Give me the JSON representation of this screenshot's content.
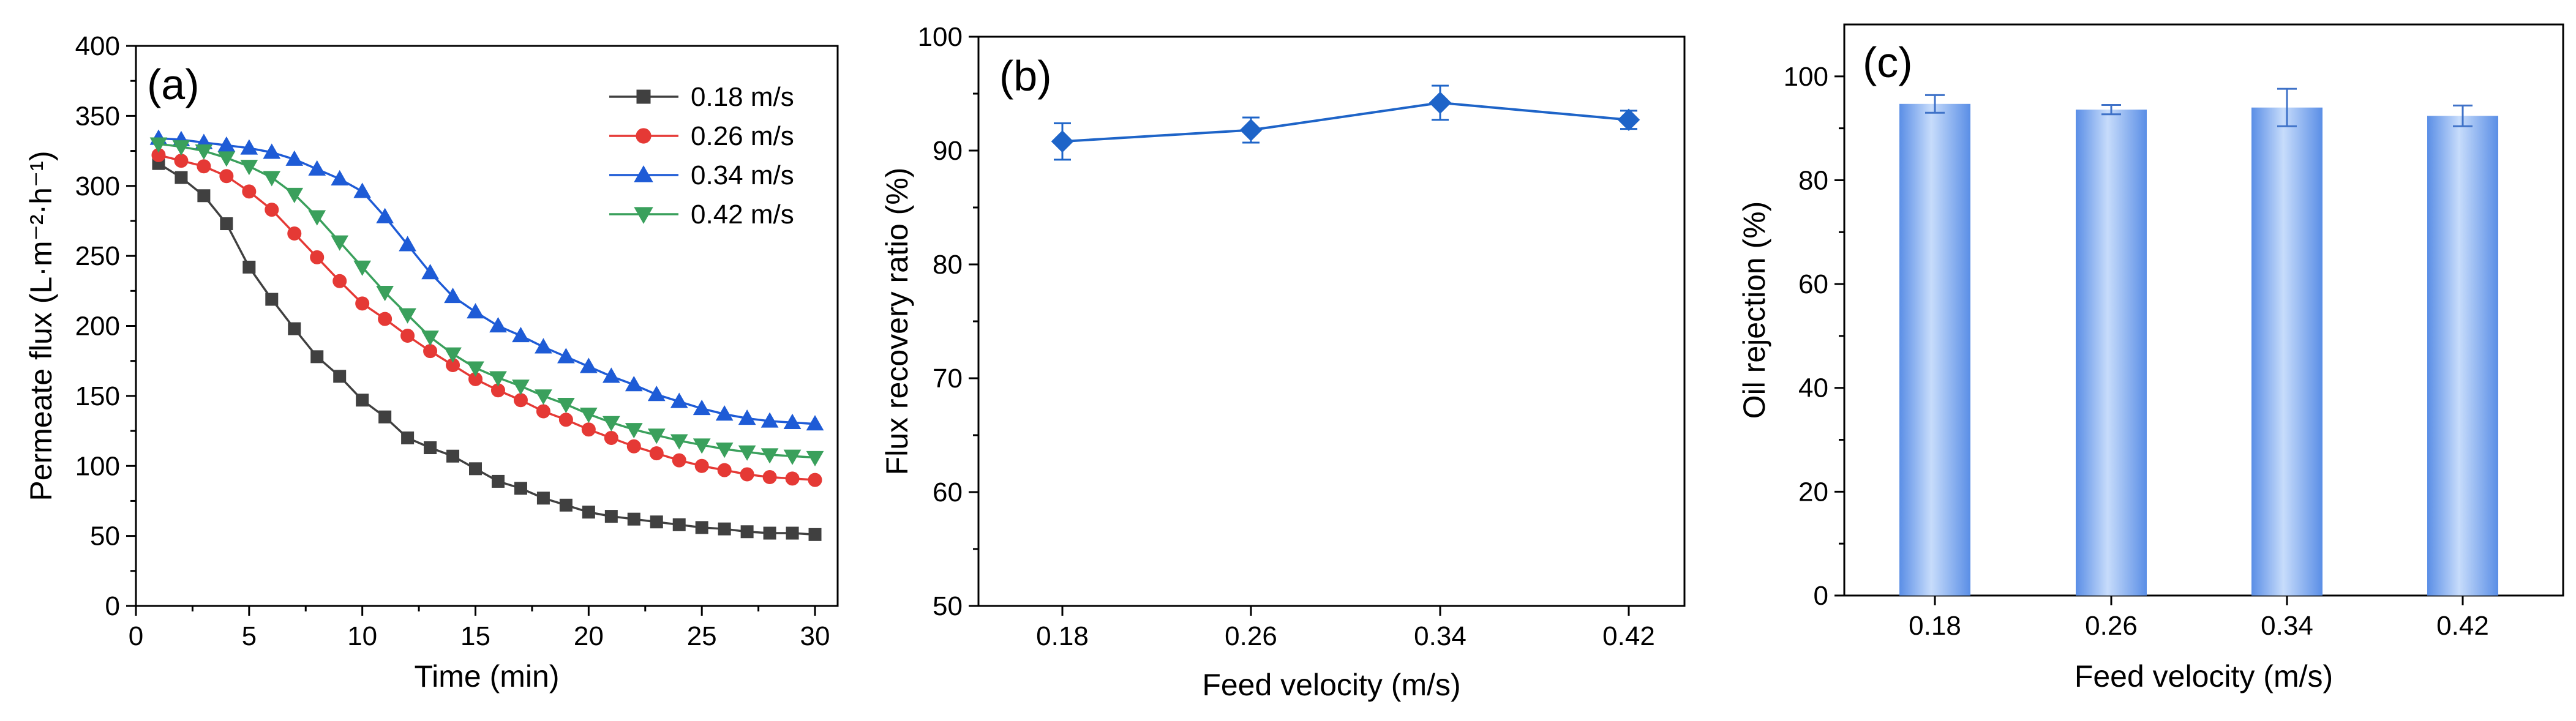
{
  "chart_data": [
    {
      "panel": "(a)",
      "type": "line",
      "title": "",
      "xlabel": "Time (min)",
      "ylabel": "Permeate flux (L·m⁻²·h⁻¹)",
      "xlim": [
        0,
        31
      ],
      "ylim": [
        0,
        400
      ],
      "xticks": [
        "0",
        "5",
        "10",
        "15",
        "20",
        "25",
        "30"
      ],
      "yticks": [
        "0",
        "50",
        "100",
        "150",
        "200",
        "250",
        "300",
        "350",
        "400"
      ],
      "legend": "top-right",
      "x": [
        1,
        2,
        3,
        4,
        5,
        6,
        7,
        8,
        9,
        10,
        11,
        12,
        13,
        14,
        15,
        16,
        17,
        18,
        19,
        20,
        21,
        22,
        23,
        24,
        25,
        26,
        27,
        28,
        29,
        30
      ],
      "series": [
        {
          "name": "0.18 m/s",
          "marker": "square",
          "color": "#404040",
          "values": [
            316,
            306,
            293,
            273,
            242,
            219,
            198,
            178,
            164,
            147,
            135,
            120,
            113,
            107,
            98,
            89,
            84,
            77,
            72,
            67,
            64,
            62,
            60,
            58,
            56,
            55,
            53,
            52,
            52,
            51
          ]
        },
        {
          "name": "0.26 m/s",
          "marker": "circle",
          "color": "#e53935",
          "values": [
            322,
            318,
            314,
            307,
            296,
            283,
            266,
            249,
            232,
            216,
            205,
            193,
            182,
            172,
            162,
            154,
            147,
            139,
            133,
            126,
            120,
            114,
            109,
            104,
            100,
            97,
            94,
            92,
            91,
            90
          ]
        },
        {
          "name": "0.34 m/s",
          "marker": "triangle-up",
          "color": "#1e5bd6",
          "values": [
            334,
            333,
            331,
            329,
            327,
            324,
            319,
            312,
            305,
            296,
            278,
            258,
            238,
            221,
            210,
            200,
            193,
            185,
            178,
            171,
            164,
            158,
            151,
            146,
            141,
            137,
            134,
            132,
            131,
            130
          ]
        },
        {
          "name": "0.42 m/s",
          "marker": "triangle-down",
          "color": "#3aa05c",
          "values": [
            330,
            328,
            325,
            320,
            314,
            306,
            294,
            278,
            260,
            242,
            224,
            208,
            192,
            180,
            170,
            163,
            157,
            150,
            144,
            137,
            131,
            126,
            122,
            118,
            115,
            112,
            110,
            108,
            107,
            106
          ]
        }
      ]
    },
    {
      "panel": "(b)",
      "type": "line",
      "title": "",
      "xlabel": "Feed velocity (m/s)",
      "ylabel": "Flux recovery ratio (%)",
      "categories": [
        "0.18",
        "0.26",
        "0.34",
        "0.42"
      ],
      "ylim": [
        50,
        100
      ],
      "yticks": [
        "50",
        "60",
        "70",
        "80",
        "90",
        "100"
      ],
      "color": "#1e64c8",
      "values": [
        90.8,
        91.8,
        94.2,
        92.7
      ],
      "errors": [
        1.6,
        1.1,
        1.5,
        0.8
      ]
    },
    {
      "panel": "(c)",
      "type": "bar",
      "title": "",
      "xlabel": "Feed velocity (m/s)",
      "ylabel": "Oil rejection (%)",
      "categories": [
        "0.18",
        "0.26",
        "0.34",
        "0.42"
      ],
      "ylim": [
        0,
        110
      ],
      "yticks": [
        "0",
        "20",
        "40",
        "60",
        "80",
        "100"
      ],
      "color": "#5f95e8",
      "values": [
        94.7,
        93.6,
        94.0,
        92.4
      ],
      "errors": [
        1.7,
        0.9,
        3.6,
        2.0
      ]
    }
  ]
}
